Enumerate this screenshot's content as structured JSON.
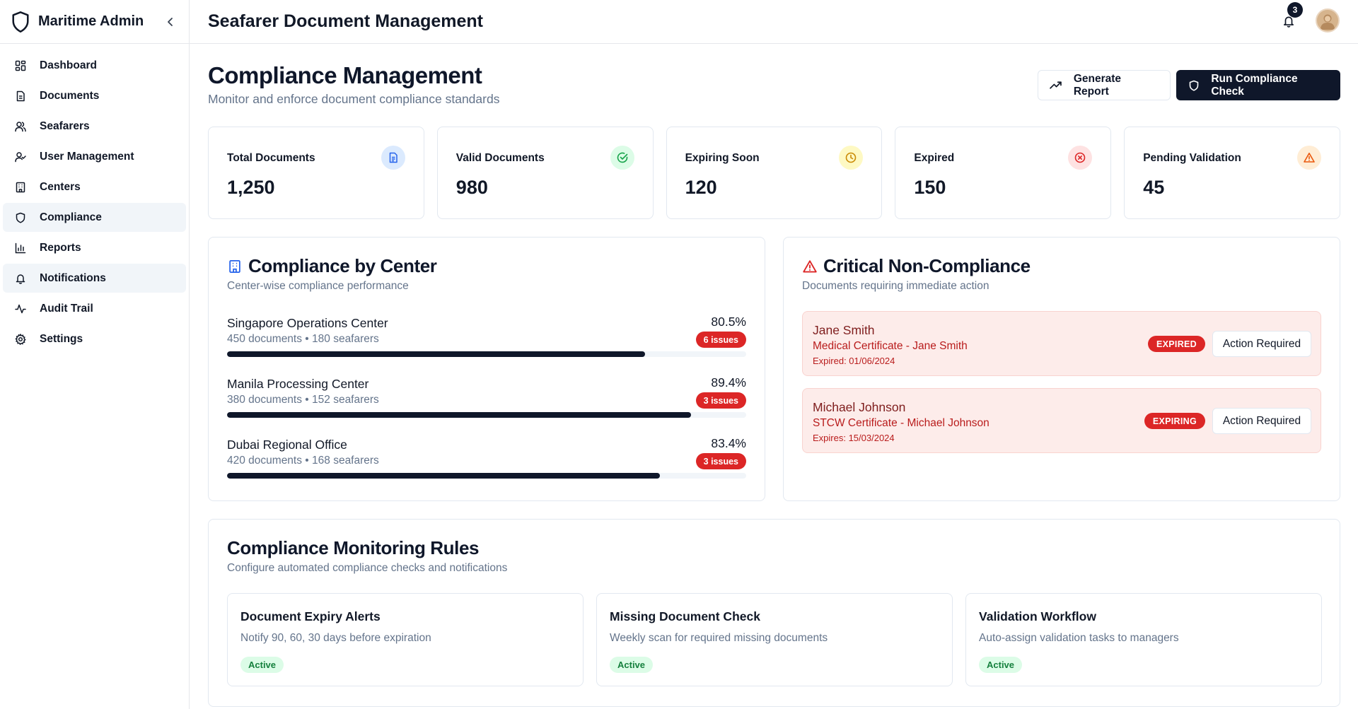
{
  "sidebar": {
    "brand": "Maritime Admin",
    "items": [
      {
        "label": "Dashboard",
        "icon": "dashboard-icon"
      },
      {
        "label": "Documents",
        "icon": "document-icon"
      },
      {
        "label": "Seafarers",
        "icon": "users-icon"
      },
      {
        "label": "User Management",
        "icon": "user-check-icon"
      },
      {
        "label": "Centers",
        "icon": "building-icon"
      },
      {
        "label": "Compliance",
        "icon": "shield-icon",
        "active": true
      },
      {
        "label": "Reports",
        "icon": "bar-chart-icon"
      },
      {
        "label": "Notifications",
        "icon": "bell-icon",
        "highlighted": true
      },
      {
        "label": "Audit Trail",
        "icon": "activity-icon"
      },
      {
        "label": "Settings",
        "icon": "gear-icon"
      }
    ]
  },
  "topbar": {
    "title": "Seafarer Document Management",
    "notification_count": "3"
  },
  "page": {
    "title": "Compliance Management",
    "subtitle": "Monitor and enforce document compliance standards",
    "buttons": {
      "generate_report": "Generate Report",
      "run_check": "Run Compliance Check"
    }
  },
  "stats": [
    {
      "label": "Total Documents",
      "value": "1,250",
      "icon": "document-icon",
      "color": "#2563eb",
      "bg": "#dbeafe"
    },
    {
      "label": "Valid Documents",
      "value": "980",
      "icon": "check-circle-icon",
      "color": "#16a34a",
      "bg": "#dcfce7"
    },
    {
      "label": "Expiring Soon",
      "value": "120",
      "icon": "clock-icon",
      "color": "#ca8a04",
      "bg": "#fef9c3"
    },
    {
      "label": "Expired",
      "value": "150",
      "icon": "x-circle-icon",
      "color": "#dc2626",
      "bg": "#fee2e2"
    },
    {
      "label": "Pending Validation",
      "value": "45",
      "icon": "warning-icon",
      "color": "#ea580c",
      "bg": "#ffedd5"
    }
  ],
  "centers_card": {
    "title": "Compliance by Center",
    "subtitle": "Center-wise compliance performance",
    "centers": [
      {
        "name": "Singapore Operations Center",
        "meta": "450 documents • 180 seafarers",
        "percent_label": "80.5%",
        "percent": 80.5,
        "issues": "6 issues"
      },
      {
        "name": "Manila Processing Center",
        "meta": "380 documents • 152 seafarers",
        "percent_label": "89.4%",
        "percent": 89.4,
        "issues": "3 issues"
      },
      {
        "name": "Dubai Regional Office",
        "meta": "420 documents • 168 seafarers",
        "percent_label": "83.4%",
        "percent": 83.4,
        "issues": "3 issues"
      }
    ]
  },
  "critical_card": {
    "title": "Critical Non-Compliance",
    "subtitle": "Documents requiring immediate action",
    "items": [
      {
        "name": "Jane Smith",
        "document": "Medical Certificate - Jane Smith",
        "date": "Expired: 01/06/2024",
        "badge": "EXPIRED",
        "action": "Action Required"
      },
      {
        "name": "Michael Johnson",
        "document": "STCW Certificate - Michael Johnson",
        "date": "Expires: 15/03/2024",
        "badge": "EXPIRING",
        "action": "Action Required"
      }
    ]
  },
  "rules_card": {
    "title": "Compliance Monitoring Rules",
    "subtitle": "Configure automated compliance checks and notifications",
    "rules": [
      {
        "title": "Document Expiry Alerts",
        "description": "Notify 90, 60, 30 days before expiration",
        "status": "Active"
      },
      {
        "title": "Missing Document Check",
        "description": "Weekly scan for required missing documents",
        "status": "Active"
      },
      {
        "title": "Validation Workflow",
        "description": "Auto-assign validation tasks to managers",
        "status": "Active"
      }
    ]
  }
}
